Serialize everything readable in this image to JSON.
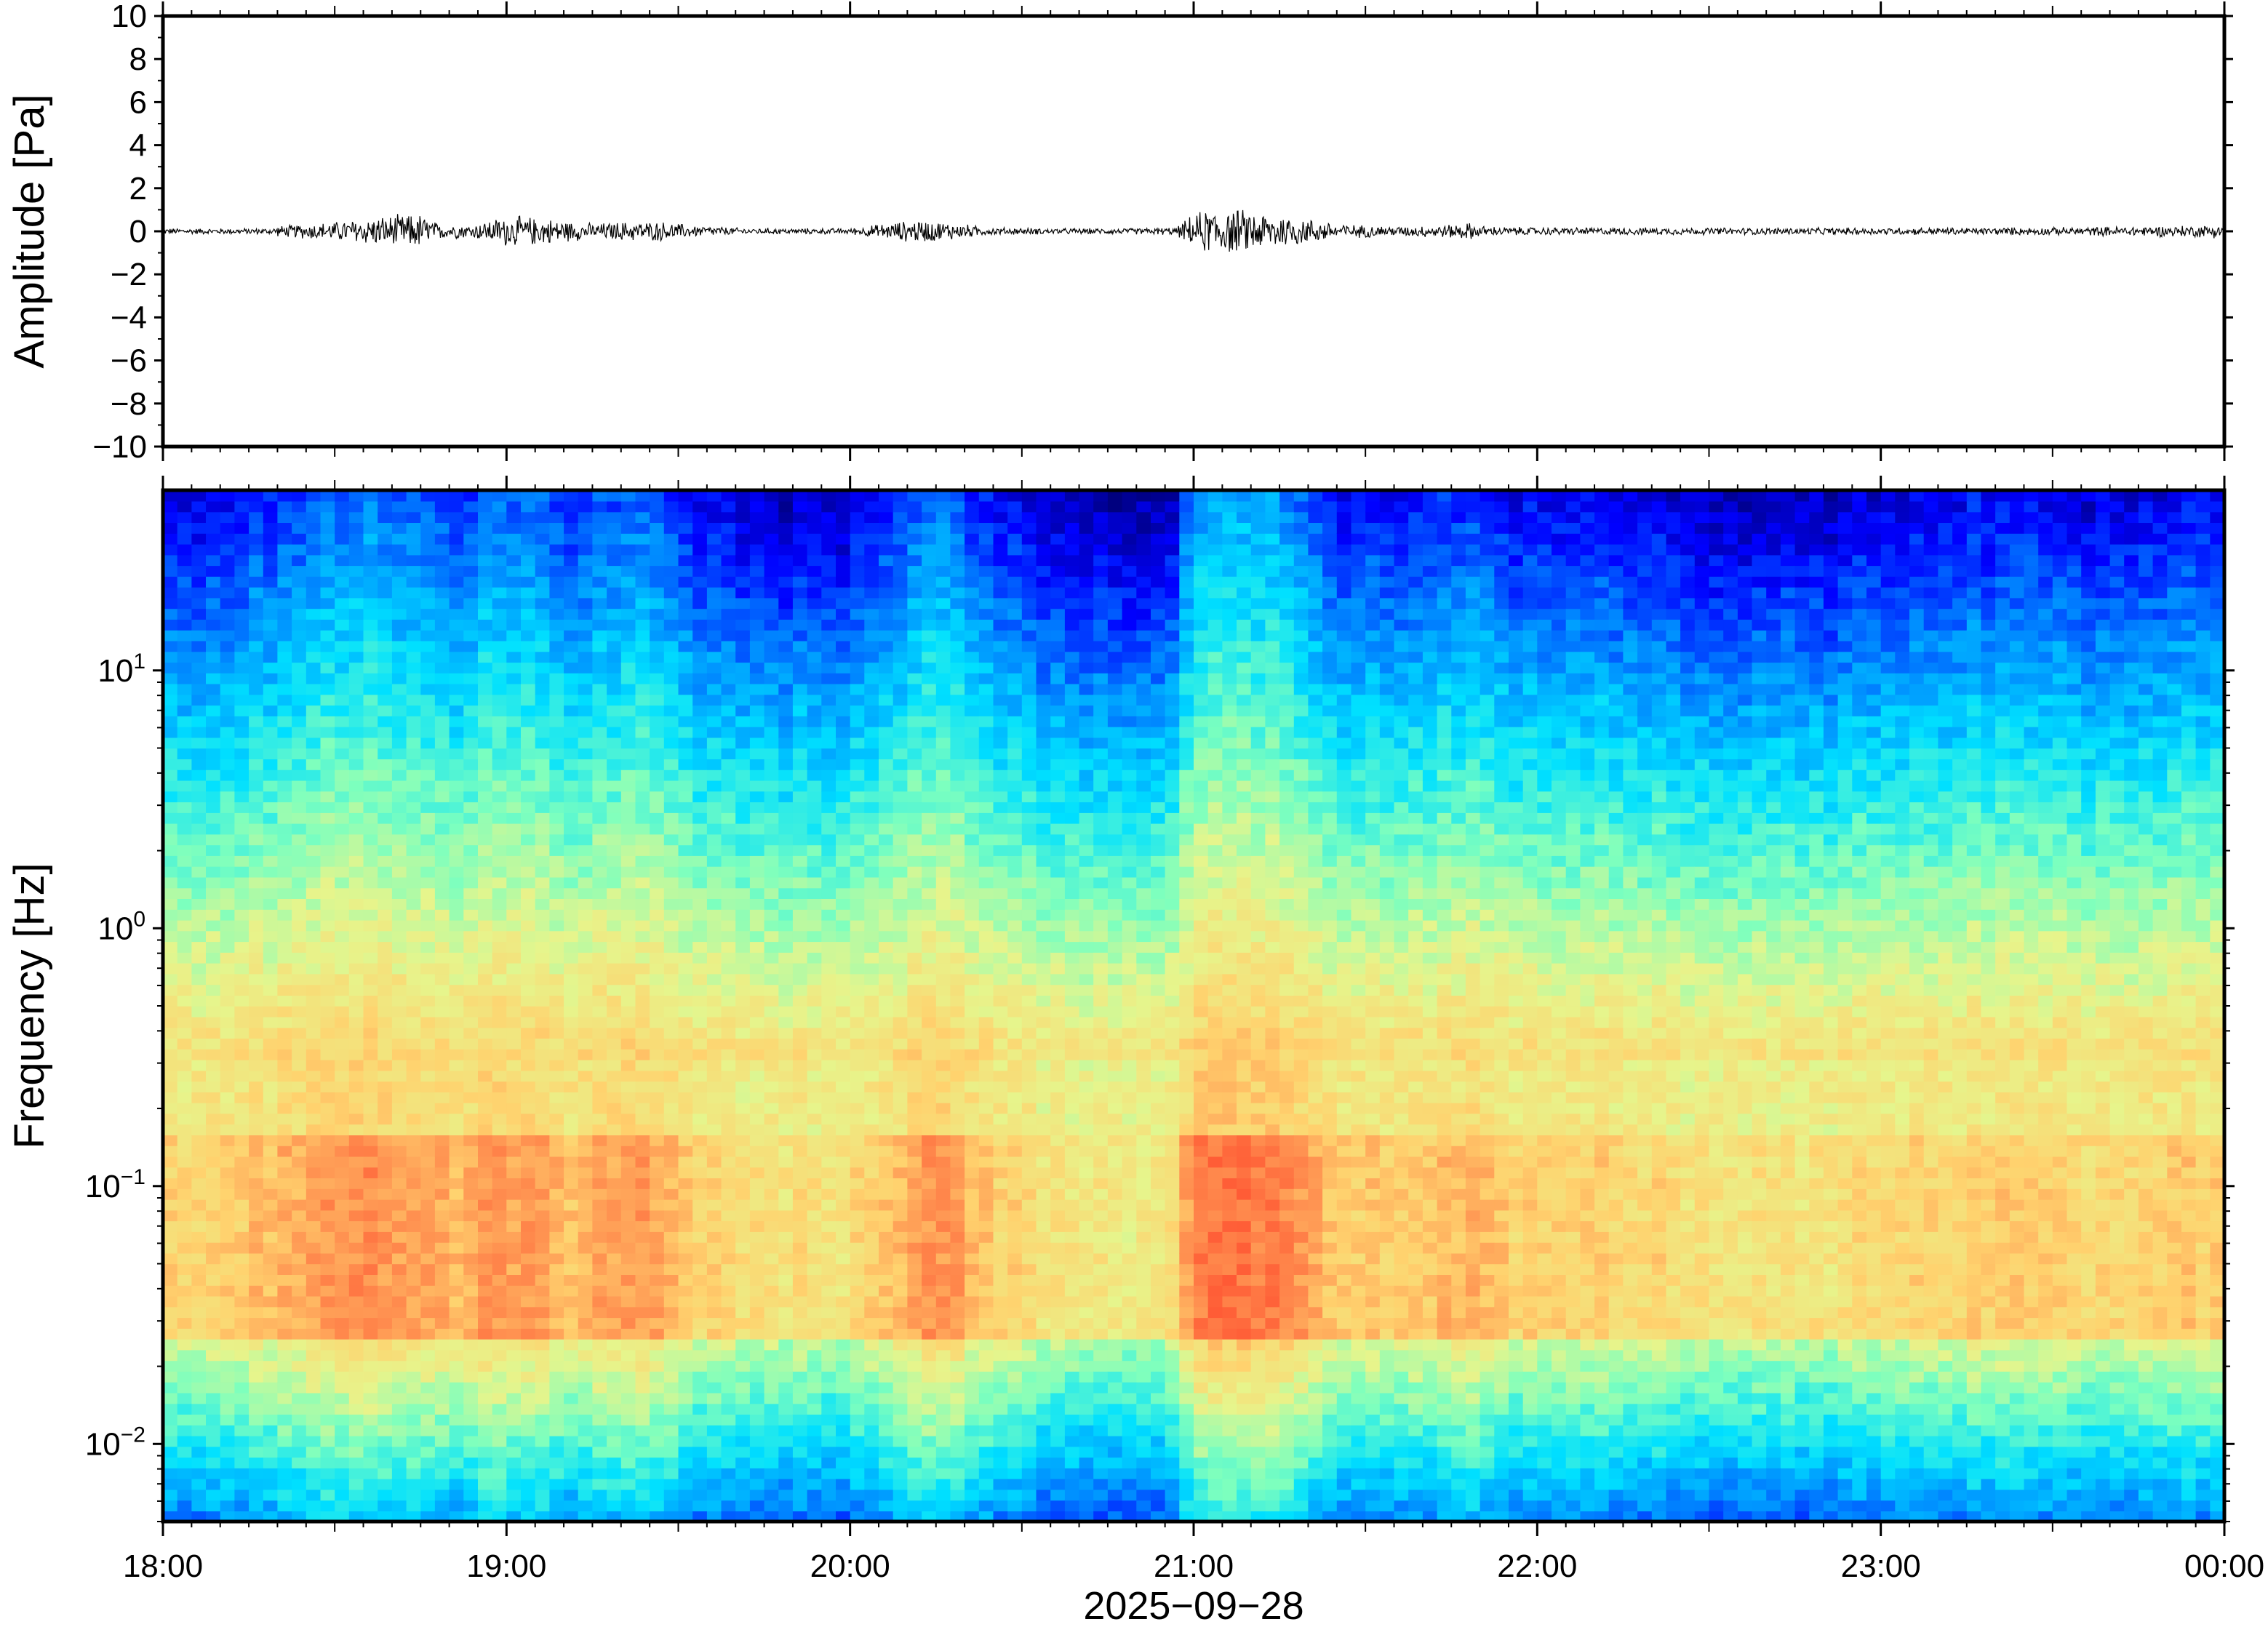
{
  "chart_data": [
    {
      "type": "line",
      "panel": "waveform",
      "title": "",
      "xlabel": "",
      "ylabel": "Amplitude [Pa]",
      "ylim": [
        -10,
        10
      ],
      "y_ticks": [
        "10",
        "8",
        "6",
        "4",
        "2",
        "0",
        "−2",
        "−4",
        "−6",
        "−8",
        "−10"
      ],
      "y_tick_values": [
        10,
        8,
        6,
        4,
        2,
        0,
        -2,
        -4,
        -6,
        -8,
        -10
      ],
      "x_unit": "hours since 18:00",
      "xlim": [
        0,
        6
      ],
      "envelope": {
        "x": [
          0.0,
          0.3,
          0.35,
          0.5,
          0.65,
          0.75,
          0.8,
          0.9,
          1.0,
          1.1,
          1.25,
          1.35,
          1.45,
          1.55,
          1.7,
          2.0,
          2.1,
          2.2,
          2.3,
          2.4,
          2.6,
          2.8,
          2.95,
          3.0,
          3.05,
          3.15,
          3.25,
          3.35,
          3.45,
          3.6,
          3.75,
          3.8,
          3.85,
          4.0,
          4.5,
          5.0,
          5.5,
          5.9,
          6.0
        ],
        "amplitude": [
          0.15,
          0.15,
          0.3,
          0.5,
          0.8,
          0.9,
          0.4,
          0.35,
          0.8,
          0.7,
          0.4,
          0.5,
          0.5,
          0.3,
          0.15,
          0.15,
          0.4,
          0.6,
          0.45,
          0.2,
          0.15,
          0.15,
          0.2,
          0.9,
          1.2,
          1.1,
          0.9,
          0.6,
          0.35,
          0.25,
          0.35,
          0.45,
          0.25,
          0.2,
          0.18,
          0.18,
          0.2,
          0.3,
          0.35
        ]
      },
      "grid": false
    },
    {
      "type": "heatmap",
      "panel": "spectrogram",
      "title": "",
      "xlabel": "2025−09−28",
      "ylabel": "Frequency [Hz]",
      "x_ticks": [
        "18:00",
        "19:00",
        "20:00",
        "21:00",
        "22:00",
        "23:00",
        "00:00"
      ],
      "y_scale": "log",
      "ylim": [
        0.005,
        50
      ],
      "y_ticks": [
        {
          "base": "10",
          "exp": "1",
          "value": 10
        },
        {
          "base": "10",
          "exp": "0",
          "value": 1
        },
        {
          "base": "10",
          "exp": "−1",
          "value": 0.1
        },
        {
          "base": "10",
          "exp": "−2",
          "value": 0.01
        }
      ],
      "colormap": [
        "#00007f",
        "#0000ff",
        "#0080ff",
        "#00e0ff",
        "#7dffbe",
        "#e6f58c",
        "#ffd26e",
        "#ff9050",
        "#ff5030"
      ],
      "x_unit": "hours since 18:00",
      "xlim": [
        0,
        6
      ],
      "activity": {
        "x": [
          0.0,
          0.2,
          0.3,
          0.45,
          0.6,
          0.7,
          0.85,
          0.95,
          1.05,
          1.2,
          1.35,
          1.45,
          1.6,
          1.8,
          2.0,
          2.2,
          2.3,
          2.45,
          2.6,
          2.8,
          2.95,
          3.0,
          3.1,
          3.25,
          3.4,
          3.55,
          3.7,
          3.8,
          3.95,
          4.2,
          4.5,
          4.8,
          5.0,
          5.3,
          5.5,
          5.7,
          5.9,
          6.0
        ],
        "level": [
          0.45,
          0.5,
          0.6,
          0.75,
          0.85,
          0.8,
          0.65,
          0.8,
          0.75,
          0.6,
          0.8,
          0.65,
          0.4,
          0.35,
          0.35,
          0.75,
          0.75,
          0.45,
          0.3,
          0.25,
          0.3,
          0.95,
          1.0,
          0.95,
          0.55,
          0.5,
          0.55,
          0.65,
          0.45,
          0.45,
          0.35,
          0.3,
          0.45,
          0.5,
          0.45,
          0.4,
          0.5,
          0.55
        ]
      }
    }
  ]
}
